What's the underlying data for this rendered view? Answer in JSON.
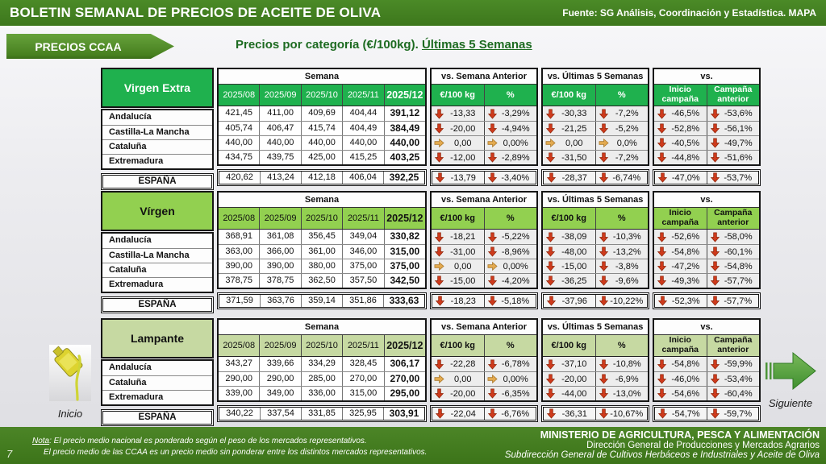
{
  "header": {
    "title": "BOLETIN SEMANAL DE PRECIOS DE ACEITE DE OLIVA",
    "source": "Fuente: SG Análisis, Coordinación y Estadística. MAPA"
  },
  "nav": {
    "precios_ccaa": "PRECIOS CCAA",
    "inicio_label": "Inicio",
    "siguiente_label": "Siguiente"
  },
  "title": {
    "prefix": "Precios por categoría (€/100kg). ",
    "underlined": "Últimas 5 Semanas"
  },
  "columns": {
    "semana": "Semana",
    "vs_semana_anterior": "vs. Semana Anterior",
    "vs_ultimas": "vs. Últimas 5 Semanas",
    "vs": "vs.",
    "eur": "€/100 kg",
    "pct": "%",
    "inicio_campana_l1": "Inicio",
    "inicio_campana_l2": "campaña",
    "campana_anterior_l1": "Campaña",
    "campana_anterior_l2": "anterior",
    "weeks": [
      "2025/08",
      "2025/09",
      "2025/10",
      "2025/11",
      "2025/12"
    ],
    "total_label": "ESPAÑA"
  },
  "tables": [
    {
      "category": "Virgen Extra",
      "theme": "dark",
      "rows": [
        {
          "region": "Andalucía",
          "weeks": [
            "421,45",
            "411,00",
            "409,69",
            "404,44",
            "391,12"
          ],
          "comps": [
            [
              "down",
              "-13,33"
            ],
            [
              "down",
              "-3,29%"
            ],
            [
              "down",
              "-30,33"
            ],
            [
              "down",
              "-7,2%"
            ],
            [
              "down",
              "-46,5%"
            ],
            [
              "down",
              "-53,6%"
            ]
          ]
        },
        {
          "region": "Castilla-La Mancha",
          "weeks": [
            "405,74",
            "406,47",
            "415,74",
            "404,49",
            "384,49"
          ],
          "comps": [
            [
              "down",
              "-20,00"
            ],
            [
              "down",
              "-4,94%"
            ],
            [
              "down",
              "-21,25"
            ],
            [
              "down",
              "-5,2%"
            ],
            [
              "down",
              "-52,8%"
            ],
            [
              "down",
              "-56,1%"
            ]
          ]
        },
        {
          "region": "Cataluña",
          "weeks": [
            "440,00",
            "440,00",
            "440,00",
            "440,00",
            "440,00"
          ],
          "comps": [
            [
              "flat",
              "0,00"
            ],
            [
              "flat",
              "0,00%"
            ],
            [
              "flat",
              "0,00"
            ],
            [
              "flat",
              "0,0%"
            ],
            [
              "down",
              "-40,5%"
            ],
            [
              "down",
              "-49,7%"
            ]
          ]
        },
        {
          "region": "Extremadura",
          "weeks": [
            "434,75",
            "439,75",
            "425,00",
            "415,25",
            "403,25"
          ],
          "comps": [
            [
              "down",
              "-12,00"
            ],
            [
              "down",
              "-2,89%"
            ],
            [
              "down",
              "-31,50"
            ],
            [
              "down",
              "-7,2%"
            ],
            [
              "down",
              "-44,8%"
            ],
            [
              "down",
              "-51,6%"
            ]
          ]
        }
      ],
      "total": {
        "weeks": [
          "420,62",
          "413,24",
          "412,18",
          "406,04",
          "392,25"
        ],
        "comps": [
          [
            "down",
            "-13,79"
          ],
          [
            "down",
            "-3,40%"
          ],
          [
            "down",
            "-28,37"
          ],
          [
            "down",
            "-6,74%"
          ],
          [
            "down",
            "-47,0%"
          ],
          [
            "down",
            "-53,7%"
          ]
        ]
      }
    },
    {
      "category": "Vírgen",
      "theme": "light",
      "rows": [
        {
          "region": "Andalucía",
          "weeks": [
            "368,91",
            "361,08",
            "356,45",
            "349,04",
            "330,82"
          ],
          "comps": [
            [
              "down",
              "-18,21"
            ],
            [
              "down",
              "-5,22%"
            ],
            [
              "down",
              "-38,09"
            ],
            [
              "down",
              "-10,3%"
            ],
            [
              "down",
              "-52,6%"
            ],
            [
              "down",
              "-58,0%"
            ]
          ]
        },
        {
          "region": "Castilla-La Mancha",
          "weeks": [
            "363,00",
            "366,00",
            "361,00",
            "346,00",
            "315,00"
          ],
          "comps": [
            [
              "down",
              "-31,00"
            ],
            [
              "down",
              "-8,96%"
            ],
            [
              "down",
              "-48,00"
            ],
            [
              "down",
              "-13,2%"
            ],
            [
              "down",
              "-54,8%"
            ],
            [
              "down",
              "-60,1%"
            ]
          ]
        },
        {
          "region": "Cataluña",
          "weeks": [
            "390,00",
            "390,00",
            "380,00",
            "375,00",
            "375,00"
          ],
          "comps": [
            [
              "flat",
              "0,00"
            ],
            [
              "flat",
              "0,00%"
            ],
            [
              "down",
              "-15,00"
            ],
            [
              "down",
              "-3,8%"
            ],
            [
              "down",
              "-47,2%"
            ],
            [
              "down",
              "-54,8%"
            ]
          ]
        },
        {
          "region": "Extremadura",
          "weeks": [
            "378,75",
            "378,75",
            "362,50",
            "357,50",
            "342,50"
          ],
          "comps": [
            [
              "down",
              "-15,00"
            ],
            [
              "down",
              "-4,20%"
            ],
            [
              "down",
              "-36,25"
            ],
            [
              "down",
              "-9,6%"
            ],
            [
              "down",
              "-49,3%"
            ],
            [
              "down",
              "-57,7%"
            ]
          ]
        }
      ],
      "total": {
        "weeks": [
          "371,59",
          "363,76",
          "359,14",
          "351,86",
          "333,63"
        ],
        "comps": [
          [
            "down",
            "-18,23"
          ],
          [
            "down",
            "-5,18%"
          ],
          [
            "down",
            "-37,96"
          ],
          [
            "down",
            "-10,22%"
          ],
          [
            "down",
            "-52,3%"
          ],
          [
            "down",
            "-57,7%"
          ]
        ]
      }
    },
    {
      "category": "Lampante",
      "theme": "pale",
      "rows": [
        {
          "region": "Andalucía",
          "weeks": [
            "343,27",
            "339,66",
            "334,29",
            "328,45",
            "306,17"
          ],
          "comps": [
            [
              "down",
              "-22,28"
            ],
            [
              "down",
              "-6,78%"
            ],
            [
              "down",
              "-37,10"
            ],
            [
              "down",
              "-10,8%"
            ],
            [
              "down",
              "-54,8%"
            ],
            [
              "down",
              "-59,9%"
            ]
          ]
        },
        {
          "region": "Cataluña",
          "weeks": [
            "290,00",
            "290,00",
            "285,00",
            "270,00",
            "270,00"
          ],
          "comps": [
            [
              "flat",
              "0,00"
            ],
            [
              "flat",
              "0,00%"
            ],
            [
              "down",
              "-20,00"
            ],
            [
              "down",
              "-6,9%"
            ],
            [
              "down",
              "-46,0%"
            ],
            [
              "down",
              "-53,4%"
            ]
          ]
        },
        {
          "region": "Extremadura",
          "weeks": [
            "339,00",
            "349,00",
            "336,00",
            "315,00",
            "295,00"
          ],
          "comps": [
            [
              "down",
              "-20,00"
            ],
            [
              "down",
              "-6,35%"
            ],
            [
              "down",
              "-44,00"
            ],
            [
              "down",
              "-13,0%"
            ],
            [
              "down",
              "-54,6%"
            ],
            [
              "down",
              "-60,4%"
            ]
          ]
        }
      ],
      "total": {
        "weeks": [
          "340,22",
          "337,54",
          "331,85",
          "325,95",
          "303,91"
        ],
        "comps": [
          [
            "down",
            "-22,04"
          ],
          [
            "down",
            "-6,76%"
          ],
          [
            "down",
            "-36,31"
          ],
          [
            "down",
            "-10,67%"
          ],
          [
            "down",
            "-54,7%"
          ],
          [
            "down",
            "-59,7%"
          ]
        ]
      }
    }
  ],
  "footer": {
    "page": "7",
    "note_label": "Nota",
    "note1_rest": ": El precio medio nacional es ponderado según el peso de los mercados representativos.",
    "note2": "El precio medio de las CCAA es un precio medio sin ponderar entre los distintos mercados representativos.",
    "ministry": "MINISTERIO DE AGRICULTURA, PESCA Y ALIMENTACIÓN",
    "direction": "Dirección General de Producciones y Mercados Agrarios",
    "subdirection": "Subdirección General de Cultivos Herbáceos e Industriales y Aceite de Oliva"
  },
  "colors": {
    "topbar_green": "#3f7b1e",
    "category_dark_green": "#1fb14e",
    "category_light_green": "#92d050",
    "category_pale_green": "#c6d9a2",
    "down_arrow_red": "#ce3a1c",
    "flat_arrow_gold": "#e2a94f",
    "title_green": "#1d6b21"
  },
  "icons": {
    "down": "down-arrow-icon",
    "flat": "right-arrow-icon",
    "home": "oil-bottle-icon",
    "next": "next-arrow-icon"
  }
}
